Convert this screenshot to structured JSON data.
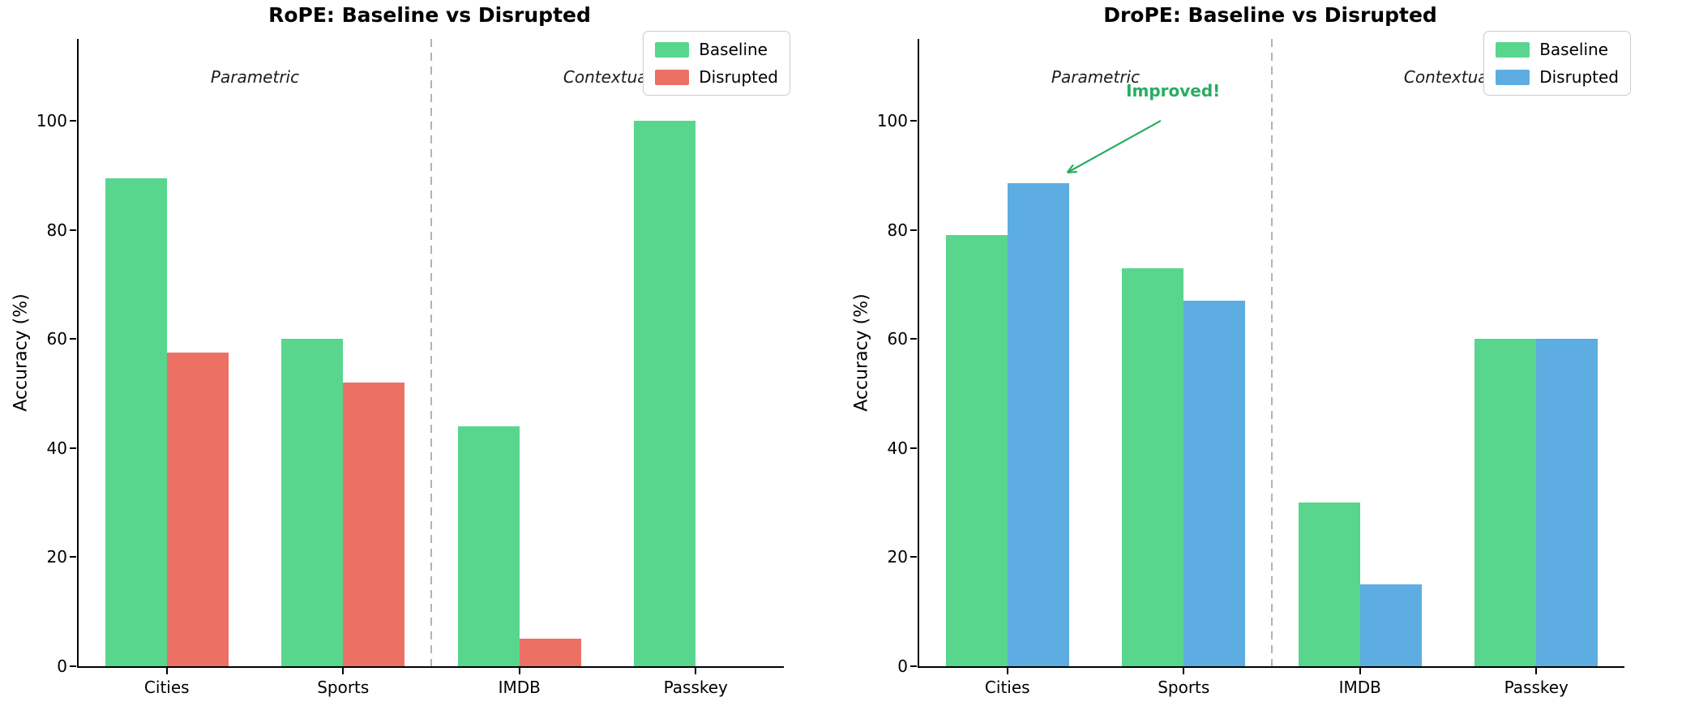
{
  "chart_data": [
    {
      "type": "bar",
      "title": "RoPE: Baseline vs Disrupted",
      "ylabel": "Accuracy (%)",
      "xlabel": "",
      "categories": [
        "Cities",
        "Sports",
        "IMDB",
        "Passkey"
      ],
      "series": [
        {
          "name": "Baseline",
          "color": "#58d68d",
          "values": [
            89.5,
            60,
            44,
            100
          ]
        },
        {
          "name": "Disrupted",
          "color": "#ec7063",
          "values": [
            57.5,
            52,
            5,
            0
          ]
        }
      ],
      "yticks": [
        0,
        20,
        40,
        60,
        80,
        100
      ],
      "ytick_labels": [
        "0",
        "20",
        "40",
        "60",
        "80",
        "100"
      ],
      "ylim": [
        0,
        115
      ],
      "xlim": [
        -0.5,
        3.5
      ],
      "bar_width": 0.35,
      "grid": false,
      "legend": {
        "position": "upper-right",
        "labels": [
          "Baseline",
          "Disrupted"
        ]
      },
      "divider": {
        "x": 1.5,
        "style": "dashed",
        "color": "#b3b3b3"
      },
      "region_labels": [
        {
          "text": "Parametric",
          "x": 0.5,
          "y": 108
        },
        {
          "text": "Contextual",
          "x": 2.5,
          "y": 108
        }
      ],
      "annotation": null
    },
    {
      "type": "bar",
      "title": "DroPE: Baseline vs Disrupted",
      "ylabel": "Accuracy (%)",
      "xlabel": "",
      "categories": [
        "Cities",
        "Sports",
        "IMDB",
        "Passkey"
      ],
      "series": [
        {
          "name": "Baseline",
          "color": "#58d68d",
          "values": [
            79,
            73,
            30,
            60
          ]
        },
        {
          "name": "Disrupted",
          "color": "#5dade2",
          "values": [
            88.5,
            67,
            15,
            60
          ]
        }
      ],
      "yticks": [
        0,
        20,
        40,
        60,
        80,
        100
      ],
      "ytick_labels": [
        "0",
        "20",
        "40",
        "60",
        "80",
        "100"
      ],
      "ylim": [
        0,
        115
      ],
      "xlim": [
        -0.5,
        3.5
      ],
      "bar_width": 0.35,
      "grid": false,
      "legend": {
        "position": "upper-right",
        "labels": [
          "Baseline",
          "Disrupted"
        ]
      },
      "divider": {
        "x": 1.5,
        "style": "dashed",
        "color": "#b3b3b3"
      },
      "region_labels": [
        {
          "text": "Parametric",
          "x": 0.5,
          "y": 108
        },
        {
          "text": "Contextual",
          "x": 2.5,
          "y": 108
        }
      ],
      "annotation": {
        "text": "Improved!",
        "color": "#27ae60",
        "text_pos": {
          "x": 0.94,
          "y": 105.5
        },
        "arrow_start": {
          "x": 0.87,
          "y": 100
        },
        "arrow_end": {
          "x": 0.34,
          "y": 90.5
        }
      }
    }
  ]
}
